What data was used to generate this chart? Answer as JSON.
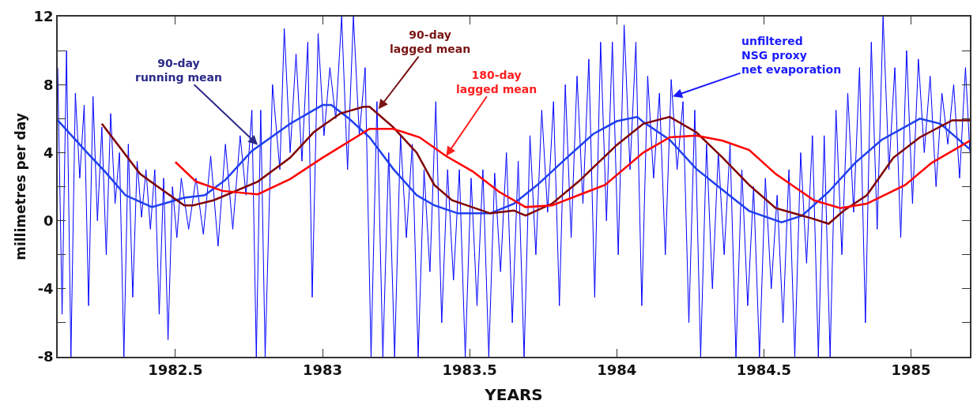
{
  "chart_data": {
    "type": "line",
    "xlabel": "YEARS",
    "ylabel": "millimetres per day",
    "xlim": [
      1982.1,
      1985.2
    ],
    "ylim": [
      -8,
      12
    ],
    "xticks": [
      1982.5,
      1983,
      1983.5,
      1984,
      1984.5,
      1985
    ],
    "yticks": [
      -8,
      {
        "value": -6,
        "label": null
      },
      -4,
      {
        "value": -2,
        "label": null
      },
      0,
      {
        "value": 2,
        "label": null
      },
      4,
      {
        "value": 6,
        "label": null
      },
      8,
      {
        "value": 10,
        "label": null
      },
      12
    ],
    "marker": "none",
    "line_style": "solid",
    "series": [
      {
        "color": "#0000ff",
        "x": [
          1982.1,
          1982.115,
          1982.13,
          1982.145,
          1982.16,
          1982.175,
          1982.19,
          1982.205,
          1982.22,
          1982.235,
          1982.25,
          1982.265,
          1982.28,
          1982.295,
          1982.31,
          1982.325,
          1982.34,
          1982.355,
          1982.37,
          1982.385,
          1982.4,
          1982.415,
          1982.43,
          1982.445,
          1982.46,
          1982.475,
          1982.49,
          1982.505,
          1982.52,
          1982.545,
          1982.57,
          1982.595,
          1982.62,
          1982.645,
          1982.67,
          1982.695,
          1982.72,
          1982.74,
          1982.76,
          1982.775,
          1982.79,
          1982.805,
          1982.83,
          1982.855,
          1982.87,
          1982.89,
          1982.91,
          1982.93,
          1982.95,
          1982.965,
          1982.985,
          1983.005,
          1983.025,
          1983.045,
          1983.065,
          1983.085,
          1983.105,
          1983.125,
          1983.145,
          1983.165,
          1983.185,
          1983.205,
          1983.225,
          1983.245,
          1983.265,
          1983.285,
          1983.305,
          1983.325,
          1983.345,
          1983.365,
          1983.385,
          1983.405,
          1983.425,
          1983.445,
          1983.465,
          1983.485,
          1983.505,
          1983.525,
          1983.545,
          1983.565,
          1983.585,
          1983.605,
          1983.625,
          1983.645,
          1983.665,
          1983.685,
          1983.705,
          1983.725,
          1983.745,
          1983.765,
          1983.785,
          1983.805,
          1983.825,
          1983.845,
          1983.865,
          1983.885,
          1983.905,
          1983.925,
          1983.945,
          1983.965,
          1983.985,
          1984.005,
          1984.025,
          1984.045,
          1984.065,
          1984.085,
          1984.105,
          1984.125,
          1984.145,
          1984.165,
          1984.185,
          1984.205,
          1984.225,
          1984.245,
          1984.265,
          1984.285,
          1984.305,
          1984.325,
          1984.345,
          1984.365,
          1984.385,
          1984.405,
          1984.425,
          1984.445,
          1984.465,
          1984.485,
          1984.505,
          1984.525,
          1984.545,
          1984.565,
          1984.585,
          1984.605,
          1984.625,
          1984.645,
          1984.665,
          1984.685,
          1984.705,
          1984.725,
          1984.745,
          1984.765,
          1984.785,
          1984.805,
          1984.825,
          1984.845,
          1984.865,
          1984.885,
          1984.905,
          1984.925,
          1984.945,
          1984.965,
          1984.985,
          1985.005,
          1985.025,
          1985.045,
          1985.065,
          1985.085,
          1985.105,
          1985.125,
          1985.145,
          1985.165,
          1985.185,
          1985.2
        ],
        "values": [
          9.0,
          -5.5,
          10.0,
          -8,
          7.5,
          2.5,
          6.8,
          -5,
          7.3,
          0,
          5.5,
          -2,
          6.3,
          1,
          4,
          -8,
          4.5,
          -4.5,
          3.5,
          0.2,
          3,
          -0.5,
          3,
          -5.5,
          2.5,
          -7,
          2,
          -1,
          2.5,
          -0.5,
          2.5,
          -0.8,
          3.8,
          -1.5,
          4.5,
          -0.5,
          5,
          1.5,
          6.5,
          -8,
          6.5,
          -8,
          8,
          3,
          11.3,
          4,
          9.8,
          3.5,
          10.5,
          -4.5,
          11,
          5,
          9,
          6,
          12,
          3,
          12,
          5,
          9,
          -8,
          7,
          -8,
          4,
          -8,
          5,
          -1,
          4.5,
          -8,
          3,
          -3,
          7,
          -6,
          3,
          -3.5,
          3,
          -8,
          2.5,
          -5,
          3,
          -8,
          2.8,
          -3,
          4,
          -6,
          3.5,
          -8,
          5,
          -2,
          6.5,
          0.5,
          7,
          -5,
          8,
          -1,
          8.5,
          1,
          9.5,
          -4.5,
          10.5,
          0,
          10.5,
          -2,
          11.5,
          3,
          10.5,
          -5,
          8.5,
          2.5,
          7.5,
          -2,
          8.3,
          3,
          7,
          -6,
          6.5,
          -8,
          4.5,
          -4,
          4,
          -2,
          4.5,
          -8,
          3,
          -5,
          2,
          -8,
          2.5,
          -4,
          1.5,
          -6,
          3,
          -8,
          4,
          -2.5,
          5,
          -8,
          5,
          -8,
          6.5,
          -2,
          7.5,
          0.5,
          9,
          -6,
          10.5,
          -0.5,
          12,
          3,
          9,
          -1,
          10,
          1,
          9.5,
          4,
          8.5,
          2,
          7.5,
          4.5,
          8,
          2.5,
          9,
          4
        ]
      },
      {
        "color": "#1f3ff0",
        "x": [
          1982.1,
          1982.2,
          1982.26,
          1982.33,
          1982.42,
          1982.53,
          1982.6,
          1982.67,
          1982.76,
          1982.89,
          1983.0,
          1983.03,
          1983.09,
          1983.16,
          1983.24,
          1983.32,
          1983.38,
          1983.46,
          1983.57,
          1983.65,
          1983.73,
          1983.83,
          1983.92,
          1984.0,
          1984.07,
          1984.09,
          1984.18,
          1984.27,
          1984.36,
          1984.45,
          1984.56,
          1984.63,
          1984.72,
          1984.81,
          1984.9,
          1985.03,
          1985.1,
          1985.2
        ],
        "values": [
          5.9,
          4.0,
          2.9,
          1.5,
          0.8,
          1.35,
          1.5,
          2.4,
          4.1,
          5.7,
          6.8,
          6.8,
          6.0,
          4.9,
          3.05,
          1.5,
          0.9,
          0.43,
          0.43,
          1.0,
          2.1,
          3.7,
          5.1,
          5.85,
          6.1,
          5.8,
          4.75,
          3.05,
          1.8,
          0.57,
          -0.1,
          0.3,
          1.7,
          3.4,
          4.75,
          6.0,
          5.7,
          4.2
        ]
      },
      {
        "color": "#800000",
        "x": [
          1982.25,
          1982.38,
          1982.44,
          1982.53,
          1982.56,
          1982.63,
          1982.78,
          1982.89,
          1982.97,
          1983.06,
          1983.14,
          1983.16,
          1983.24,
          1983.32,
          1983.38,
          1983.44,
          1983.57,
          1983.65,
          1983.69,
          1983.78,
          1983.87,
          1984.0,
          1984.09,
          1984.18,
          1984.27,
          1984.36,
          1984.45,
          1984.54,
          1984.66,
          1984.72,
          1984.77,
          1984.85,
          1984.94,
          1985.03,
          1985.14,
          1985.2
        ],
        "values": [
          5.7,
          2.75,
          2.0,
          0.9,
          0.9,
          1.2,
          2.3,
          3.7,
          5.2,
          6.3,
          6.7,
          6.7,
          5.5,
          4.0,
          2.1,
          1.2,
          0.43,
          0.6,
          0.3,
          1.0,
          2.3,
          4.45,
          5.7,
          6.1,
          5.2,
          3.7,
          2.1,
          0.74,
          0.15,
          -0.18,
          0.57,
          1.5,
          3.7,
          4.9,
          5.9,
          5.9
        ]
      },
      {
        "color": "#ff0000",
        "x": [
          1982.5,
          1982.57,
          1982.66,
          1982.78,
          1982.89,
          1983.0,
          1983.16,
          1983.24,
          1983.33,
          1983.42,
          1983.51,
          1983.6,
          1983.69,
          1983.78,
          1983.87,
          1983.96,
          1984.09,
          1984.18,
          1984.27,
          1984.36,
          1984.45,
          1984.54,
          1984.67,
          1984.76,
          1984.85,
          1984.98,
          1985.07,
          1985.2
        ],
        "values": [
          3.45,
          2.3,
          1.75,
          1.55,
          2.45,
          3.7,
          5.4,
          5.4,
          4.9,
          3.8,
          2.9,
          1.7,
          0.8,
          0.9,
          1.5,
          2.1,
          4.0,
          4.9,
          5.0,
          4.7,
          4.15,
          2.75,
          1.2,
          0.74,
          1.0,
          2.1,
          3.4,
          4.7
        ]
      }
    ],
    "annotations": [
      {
        "text": "90-day\nrunning mean",
        "x": 1982.78,
        "y": 4.45
      },
      {
        "text": "90-day\nlagged mean",
        "x": 1983.19,
        "y": 6.56
      },
      {
        "text": "180-day\nlagged mean",
        "x": 1983.42,
        "y": 3.8
      },
      {
        "text": "unfiltered\nNSG proxy\nnet evaporation",
        "x": 1984.19,
        "y": 7.3
      }
    ]
  }
}
